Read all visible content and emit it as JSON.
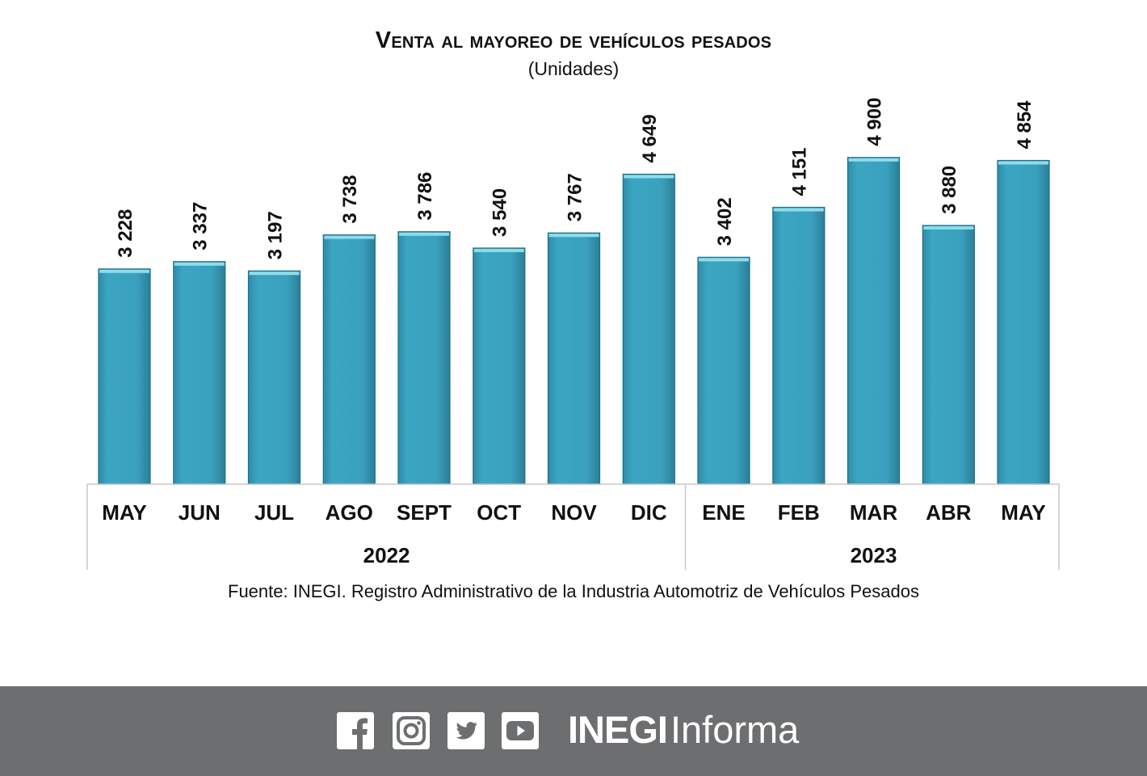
{
  "chart_data": {
    "type": "bar",
    "title": "Venta al mayoreo de vehículos pesados",
    "subtitle": "(Unidades)",
    "categories": [
      "MAY",
      "JUN",
      "JUL",
      "AGO",
      "SEPT",
      "OCT",
      "NOV",
      "DIC",
      "ENE",
      "FEB",
      "MAR",
      "ABR",
      "MAY"
    ],
    "values": [
      3228,
      3337,
      3197,
      3738,
      3786,
      3540,
      3767,
      4649,
      3402,
      4151,
      4900,
      3880,
      4854
    ],
    "value_labels": [
      "3 228",
      "3 337",
      "3 197",
      "3 738",
      "3 786",
      "3 540",
      "3 767",
      "4 649",
      "3 402",
      "4 151",
      "4 900",
      "3 880",
      "4 854"
    ],
    "groups": [
      {
        "label": "2022",
        "start": 0,
        "end": 7
      },
      {
        "label": "2023",
        "start": 8,
        "end": 12
      }
    ],
    "ylim": [
      0,
      5250
    ],
    "grid": false,
    "bar_color": "#3aa0bd",
    "source": "Fuente: INEGI. Registro Administrativo de la Industria Automotriz de Vehículos Pesados"
  },
  "footer": {
    "background": "#6d6e70",
    "social_icons": [
      "facebook-icon",
      "instagram-icon",
      "twitter-icon",
      "youtube-icon"
    ],
    "brand_strong": "INEGI",
    "brand_light": "Informa"
  }
}
